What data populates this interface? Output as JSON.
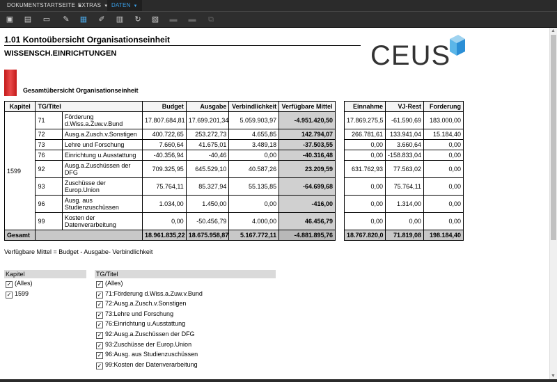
{
  "menubar": {
    "items": [
      "DOKUMENTSTARTSEITE",
      "EXTRAS",
      "DATEN"
    ]
  },
  "report": {
    "title": "1.01 Kontoübersicht Organisationseinheit",
    "subtitle": "WISSENSCH.EINRICHTUNGEN",
    "logo": "CEUS",
    "section": "Gesamtübersicht Organisationseinheit",
    "footnote": "Verfügbare Mittel = Budget - Ausgabe- Verbindlichkeit"
  },
  "table": {
    "headers": [
      "Kapitel",
      "TG/Titel",
      "Budget",
      "Ausgabe",
      "Verbindlichkeit",
      "Verfügbare Mittel",
      "Einnahme",
      "VJ-Rest",
      "Forderung"
    ],
    "kapitel": "1599",
    "rows": [
      {
        "tg": "71",
        "titel": "Förderung d.Wiss.a.Zuw.v.Bund",
        "budget": "17.807.684,81",
        "ausgabe": "17.699.201,34",
        "verb": "5.059.903,97",
        "verf": "-4.951.420,50",
        "ein": "17.869.275,5",
        "vj": "-61.590,69",
        "ford": "183.000,00"
      },
      {
        "tg": "72",
        "titel": "Ausg.a.Zusch.v.Sonstigen",
        "budget": "400.722,65",
        "ausgabe": "253.272,73",
        "verb": "4.655,85",
        "verf": "142.794,07",
        "ein": "266.781,61",
        "vj": "133.941,04",
        "ford": "15.184,40"
      },
      {
        "tg": "73",
        "titel": "Lehre und Forschung",
        "budget": "7.660,64",
        "ausgabe": "41.675,01",
        "verb": "3.489,18",
        "verf": "-37.503,55",
        "ein": "0,00",
        "vj": "3.660,64",
        "ford": "0,00"
      },
      {
        "tg": "76",
        "titel": "Einrichtung u.Ausstattung",
        "budget": "-40.356,94",
        "ausgabe": "-40,46",
        "verb": "0,00",
        "verf": "-40.316,48",
        "ein": "0,00",
        "vj": "-158.833,04",
        "ford": "0,00"
      },
      {
        "tg": "92",
        "titel": "Ausg.a.Zuschüssen der DFG",
        "budget": "709.325,95",
        "ausgabe": "645.529,10",
        "verb": "40.587,26",
        "verf": "23.209,59",
        "ein": "631.762,93",
        "vj": "77.563,02",
        "ford": "0,00"
      },
      {
        "tg": "93",
        "titel": "Zuschüsse der Europ.Union",
        "budget": "75.764,11",
        "ausgabe": "85.327,94",
        "verb": "55.135,85",
        "verf": "-64.699,68",
        "ein": "0,00",
        "vj": "75.764,11",
        "ford": "0,00"
      },
      {
        "tg": "96",
        "titel": "Ausg. aus Studienzuschüssen",
        "budget": "1.034,00",
        "ausgabe": "1.450,00",
        "verb": "0,00",
        "verf": "-416,00",
        "ein": "0,00",
        "vj": "1.314,00",
        "ford": "0,00"
      },
      {
        "tg": "99",
        "titel": "Kosten der Datenverarbeitung",
        "budget": "0,00",
        "ausgabe": "-50.456,79",
        "verb": "4.000,00",
        "verf": "46.456,79",
        "ein": "0,00",
        "vj": "0,00",
        "ford": "0,00"
      }
    ],
    "total": {
      "label": "Gesamt",
      "budget": "18.961.835,22",
      "ausgabe": "18.675.958,87",
      "verb": "5.167.772,11",
      "verf": "-4.881.895,76",
      "ein": "18.767.820,0",
      "vj": "71.819,08",
      "ford": "198.184,40"
    }
  },
  "filters": {
    "kapitel": {
      "header": "Kapitel",
      "items": [
        "(Alles)",
        "1599"
      ]
    },
    "tg": {
      "header": "TG/Titel",
      "items": [
        "(Alles)",
        "71:Förderung d.Wiss.a.Zuw.v.Bund",
        "72:Ausg.a.Zusch.v.Sonstigen",
        "73:Lehre und Forschung",
        "76:Einrichtung u.Ausstattung",
        "92:Ausg.a.Zuschüssen der DFG",
        "93:Zuschüsse der Europ.Union",
        "96:Ausg. aus Studienzuschüssen",
        "99:Kosten der Datenverarbeitung"
      ]
    }
  }
}
